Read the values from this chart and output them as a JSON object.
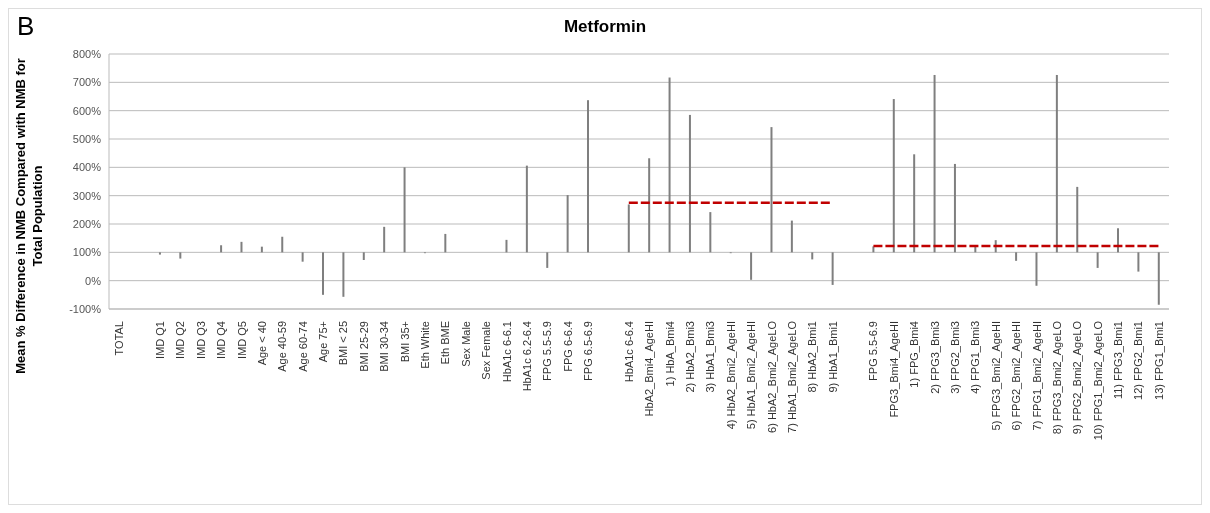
{
  "chart_data": {
    "type": "bar",
    "title": "Metformin",
    "ylabel": "Mean % Difference in NMB Compared with NMB for Total Population",
    "annotations": [
      "B"
    ],
    "categories": [
      "TOTAL",
      null,
      "IMD Q1",
      "IMD Q2",
      "IMD Q3",
      "IMD Q4",
      "IMD Q5",
      "Age < 40",
      "Age 40-59",
      "Age 60-74",
      "Age 75+",
      "BMI < 25",
      "BMI 25-29",
      "BMI 30-34",
      "BMI 35+",
      "Eth White",
      "Eth BME",
      "Sex Male",
      "Sex Female",
      "HbA1c 6-6.1",
      "HbA1c 6.2-6.4",
      "FPG 5.5-5.9",
      "FPG 6-6.4",
      "FPG 6.5-6.9",
      null,
      "HbA1c 6-6.4",
      "HbA2_Bmi4_AgeHI",
      "1) HbA_Bmi4",
      "2) HbA2_Bmi3",
      "3) HbA1_Bmi3",
      "4) HbA2_Bmi2_AgeHI",
      "5) HbA1_Bmi2_AgeHI",
      "6) HbA2_Bmi2_AgeLO",
      "7) HbA1_Bmi2_AgeLO",
      "8) HbA2_Bmi1",
      "9) HbA1_Bmi1",
      null,
      "FPG 5.5-6.9",
      "FPG3_Bmi4_AgeHI",
      "1) FPG_Bmi4",
      "2) FPG3_Bmi3",
      "3) FPG2_Bmi3",
      "4) FPG1_Bmi3",
      "5) FPG3_Bmi2_AgeHI",
      "6) FPG2_Bmi2_AgeHI",
      "7) FPG1_Bmi2_AgeHI",
      "8) FPG3_Bmi2_AgeLO",
      "9) FPG2_Bmi2_AgeLO",
      "10) FPG1_Bmi2_AgeLO",
      "11) FPG3_Bmi1",
      "12) FPG2_Bmi1",
      "13) FPG1_Bmi1"
    ],
    "series": [
      {
        "color": "#7f7f7f",
        "values": [
          null,
          null,
          -8,
          -22,
          null,
          25,
          37,
          20,
          55,
          -33,
          -150,
          -157,
          -27,
          90,
          300,
          -3,
          65,
          null,
          null,
          44,
          306,
          -55,
          202,
          537,
          null,
          169,
          332,
          617,
          485,
          142,
          -3,
          -97,
          442,
          112,
          -25,
          -115,
          null,
          21,
          541,
          346,
          626,
          312,
          20,
          43,
          -30,
          -118,
          626,
          231,
          -55,
          85,
          -68,
          -185
        ],
        "base": [
          null,
          null,
          100,
          100,
          null,
          100,
          100,
          100,
          100,
          100,
          100,
          100,
          100,
          100,
          100,
          100,
          100,
          null,
          null,
          100,
          100,
          100,
          100,
          100,
          null,
          100,
          100,
          100,
          100,
          100,
          100,
          100,
          100,
          100,
          100,
          100,
          null,
          100,
          100,
          100,
          100,
          100,
          100,
          100,
          100,
          100,
          100,
          100,
          100,
          100,
          100,
          100
        ]
      },
      {
        "type": "line",
        "color": "#c00000",
        "line_style": "dashed",
        "values": [
          null,
          null,
          null,
          null,
          null,
          null,
          null,
          null,
          null,
          null,
          null,
          null,
          null,
          null,
          null,
          null,
          null,
          null,
          null,
          null,
          null,
          null,
          null,
          null,
          null,
          275,
          275,
          275,
          275,
          275,
          275,
          275,
          275,
          275,
          275,
          275,
          null,
          null,
          null,
          null,
          null,
          null,
          null,
          null,
          null,
          null,
          null,
          null,
          null,
          null,
          null,
          null
        ]
      },
      {
        "type": "line",
        "color": "#c00000",
        "line_style": "dashed",
        "values": [
          null,
          null,
          null,
          null,
          null,
          null,
          null,
          null,
          null,
          null,
          null,
          null,
          null,
          null,
          null,
          null,
          null,
          null,
          null,
          null,
          null,
          null,
          null,
          null,
          null,
          null,
          null,
          null,
          null,
          null,
          null,
          null,
          null,
          null,
          null,
          null,
          null,
          122,
          122,
          122,
          122,
          122,
          122,
          122,
          122,
          122,
          122,
          122,
          122,
          122,
          122,
          122
        ]
      }
    ],
    "ylim": [
      -100,
      800
    ],
    "yticks": [
      {
        "value": -100,
        "label": "-100%"
      },
      {
        "value": 0,
        "label": "0%"
      },
      {
        "value": 100,
        "label": "100%"
      },
      {
        "value": 200,
        "label": "200%"
      },
      {
        "value": 300,
        "label": "300%"
      },
      {
        "value": 400,
        "label": "400%"
      },
      {
        "value": 500,
        "label": "500%"
      },
      {
        "value": 600,
        "label": "600%"
      },
      {
        "value": 700,
        "label": "700%"
      },
      {
        "value": 800,
        "label": "800%"
      }
    ],
    "grid": "y"
  }
}
